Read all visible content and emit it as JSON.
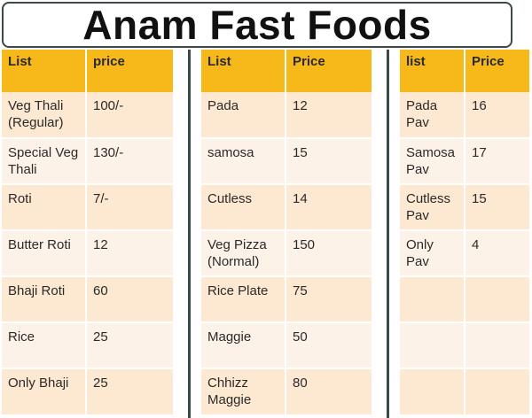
{
  "title": "Anam Fast Foods",
  "tables": [
    {
      "headers": [
        "List",
        "price"
      ],
      "rows": [
        [
          "Veg Thali (Regular)",
          "100/-"
        ],
        [
          "Special Veg Thali",
          "130/-"
        ],
        [
          "Roti",
          "7/-"
        ],
        [
          "Butter Roti",
          "12"
        ],
        [
          "Bhaji Roti",
          "60"
        ],
        [
          "Rice",
          "25"
        ],
        [
          "Only Bhaji",
          "25"
        ]
      ]
    },
    {
      "headers": [
        "List",
        "Price"
      ],
      "rows": [
        [
          "Pada",
          "12"
        ],
        [
          "samosa",
          "15"
        ],
        [
          "Cutless",
          "14"
        ],
        [
          "Veg Pizza (Normal)",
          "150"
        ],
        [
          "Rice Plate",
          "75"
        ],
        [
          "Maggie",
          "50"
        ],
        [
          "Chhizz Maggie",
          "80"
        ]
      ]
    },
    {
      "headers": [
        "list",
        "Price"
      ],
      "rows": [
        [
          "Pada Pav",
          "16"
        ],
        [
          "Samosa Pav",
          "17"
        ],
        [
          "Cutless Pav",
          "15"
        ],
        [
          "Only Pav",
          "4"
        ],
        [
          "",
          ""
        ],
        [
          "",
          ""
        ],
        [
          "",
          ""
        ]
      ]
    }
  ]
}
